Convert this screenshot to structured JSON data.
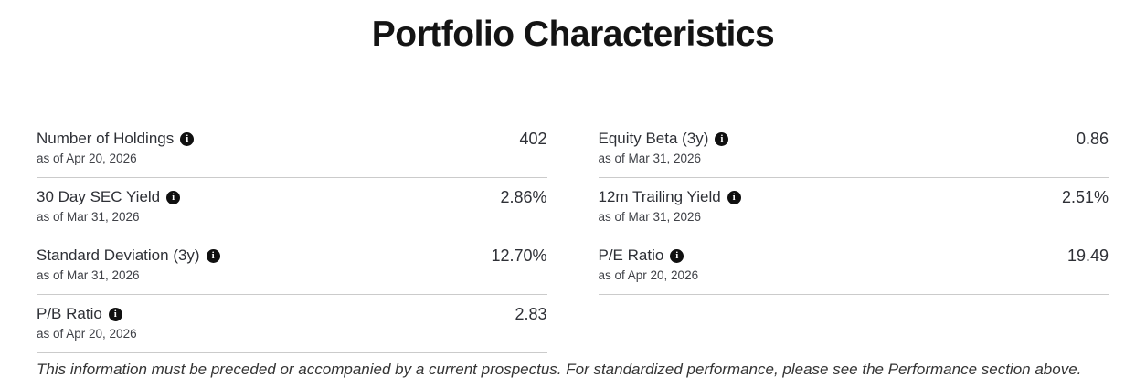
{
  "page": {
    "title": "Portfolio Characteristics",
    "footer": "This information must be preceded or accompanied by a current prospectus. For standardized performance, please see the Performance section above."
  },
  "icons": {
    "info": {
      "name": "info-icon",
      "glyph": "i"
    }
  },
  "colors": {
    "title_text": "#141414",
    "body_text": "#2e3036",
    "divider": "#cbcbcb",
    "info_icon_bg": "#101010"
  },
  "characteristics": {
    "left": [
      {
        "label": "Number of Holdings",
        "value": "402",
        "as_of": "as of Apr 20, 2026"
      },
      {
        "label": "30 Day SEC Yield",
        "value": "2.86%",
        "as_of": "as of Mar 31, 2026"
      },
      {
        "label": "Standard Deviation (3y)",
        "value": "12.70%",
        "as_of": "as of Mar 31, 2026"
      },
      {
        "label": "P/B Ratio",
        "value": "2.83",
        "as_of": "as of Apr 20, 2026"
      }
    ],
    "right": [
      {
        "label": "Equity Beta (3y)",
        "value": "0.86",
        "as_of": "as of Mar 31, 2026"
      },
      {
        "label": "12m Trailing Yield",
        "value": "2.51%",
        "as_of": "as of Mar 31, 2026"
      },
      {
        "label": "P/E Ratio",
        "value": "19.49",
        "as_of": "as of Apr 20, 2026"
      }
    ]
  }
}
